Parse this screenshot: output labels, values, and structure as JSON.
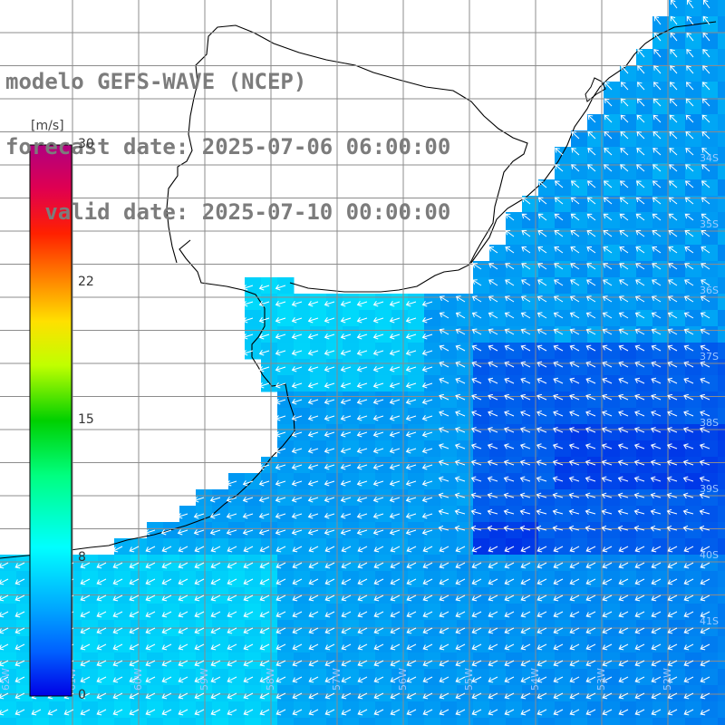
{
  "title": {
    "line1": "modelo GEFS-WAVE (NCEP)",
    "line2": "forecast date: 2025-07-06 06:00:00",
    "line3": "   valid date: 2025-07-10 00:00:00"
  },
  "colorbar": {
    "unit": "[m/s]",
    "min": 0,
    "max": 30,
    "ticks": [
      "30",
      "22",
      "15",
      "8",
      "0"
    ],
    "tick_values": [
      30,
      22,
      15,
      8,
      0
    ],
    "colors": [
      "#0000e6",
      "#0070ff",
      "#14b4ff",
      "#00ffff",
      "#00ff80",
      "#00e000",
      "#80ff00",
      "#ffff00",
      "#ffa000",
      "#ff5000",
      "#ff0000",
      "#e0006a",
      "#b00080"
    ]
  },
  "map": {
    "field": "surface wind speed and direction",
    "land_color": "#ffffff",
    "coastline_color": "#000000",
    "grid_color": "#8c8c8c",
    "right_edge_labels": [
      "34S",
      "35S",
      "36S",
      "37S",
      "38S",
      "39S",
      "40S",
      "41S"
    ],
    "bottom_edge_labels": [
      "62W",
      "61W",
      "60W",
      "59W",
      "58W",
      "57W",
      "56W",
      "55W",
      "54W",
      "53W",
      "52W"
    ]
  }
}
